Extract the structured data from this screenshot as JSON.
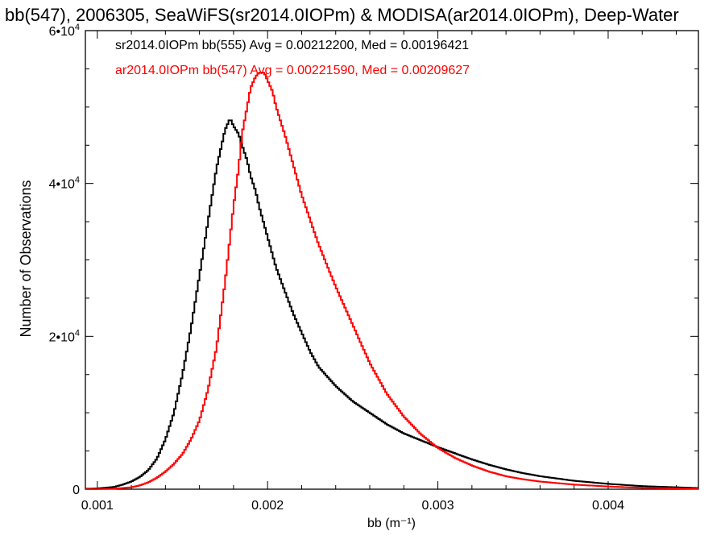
{
  "chart_data": {
    "type": "line",
    "title": "bb(547), 2006305, SeaWiFS(sr2014.0IOPm) & MODISA(ar2014.0IOPm), Deep-Water",
    "xlabel": "bb (m⁻¹)",
    "ylabel": "Number of Observations",
    "xlim": [
      0.00093,
      0.00453
    ],
    "ylim": [
      0,
      60000
    ],
    "x_ticks": [
      {
        "value": 0.001,
        "label": "0.001"
      },
      {
        "value": 0.002,
        "label": "0.002"
      },
      {
        "value": 0.003,
        "label": "0.003"
      },
      {
        "value": 0.004,
        "label": "0.004"
      }
    ],
    "y_ticks": [
      {
        "value": 0,
        "base": "0",
        "exp": ""
      },
      {
        "value": 20000,
        "base": "2•10",
        "exp": "4"
      },
      {
        "value": 40000,
        "base": "4•10",
        "exp": "4"
      },
      {
        "value": 60000,
        "base": "6•10",
        "exp": "4"
      }
    ],
    "step_style": "histogram",
    "series": [
      {
        "label": "sr2014.0IOPm bb(555) Avg = 0.00212200, Med = 0.00196421",
        "color": "#000000",
        "x": [
          0.00093,
          0.001,
          0.0011,
          0.00115,
          0.0012,
          0.00125,
          0.0013,
          0.00135,
          0.0014,
          0.00145,
          0.0015,
          0.00155,
          0.0016,
          0.00165,
          0.0017,
          0.00173,
          0.00175,
          0.00178,
          0.0018,
          0.00183,
          0.00185,
          0.00188,
          0.0019,
          0.00193,
          0.00195,
          0.002,
          0.00205,
          0.0021,
          0.00215,
          0.0022,
          0.00225,
          0.0023,
          0.0024,
          0.0025,
          0.0026,
          0.0027,
          0.0028,
          0.0029,
          0.003,
          0.0031,
          0.0032,
          0.0033,
          0.0034,
          0.0035,
          0.0036,
          0.0038,
          0.004,
          0.0042,
          0.00453
        ],
        "y": [
          50,
          100,
          300,
          600,
          1000,
          1600,
          2500,
          4000,
          6500,
          10000,
          15000,
          21000,
          28000,
          35000,
          42000,
          45000,
          47000,
          48500,
          47500,
          46500,
          45000,
          43000,
          41000,
          39000,
          37000,
          33000,
          29000,
          26000,
          23000,
          20500,
          18000,
          16000,
          13500,
          11500,
          10000,
          8500,
          7300,
          6400,
          5500,
          4700,
          3900,
          3200,
          2600,
          2100,
          1700,
          1100,
          700,
          400,
          150
        ]
      },
      {
        "label": "ar2014.0IOPm bb(547) Avg = 0.00221590, Med = 0.00209627",
        "color": "#ff0000",
        "x": [
          0.00093,
          0.001,
          0.0011,
          0.0012,
          0.00125,
          0.0013,
          0.00135,
          0.0014,
          0.00145,
          0.0015,
          0.00155,
          0.0016,
          0.00165,
          0.0017,
          0.00175,
          0.0018,
          0.00183,
          0.00185,
          0.00188,
          0.0019,
          0.00193,
          0.00195,
          0.00198,
          0.002,
          0.00203,
          0.00205,
          0.0021,
          0.00215,
          0.0022,
          0.0023,
          0.0024,
          0.0025,
          0.0026,
          0.0027,
          0.0028,
          0.0029,
          0.003,
          0.0031,
          0.0032,
          0.0033,
          0.0034,
          0.0035,
          0.0036,
          0.0038,
          0.004,
          0.0042,
          0.00453
        ],
        "y": [
          0,
          20,
          60,
          250,
          500,
          900,
          1500,
          2300,
          3300,
          4600,
          6500,
          9000,
          13000,
          18500,
          27000,
          37000,
          42000,
          46500,
          50000,
          52500,
          54000,
          54500,
          54500,
          53500,
          52000,
          50000,
          46500,
          42500,
          38500,
          32000,
          26500,
          21500,
          16500,
          12500,
          9500,
          7200,
          5400,
          4100,
          3100,
          2300,
          1700,
          1300,
          1000,
          600,
          350,
          180,
          60
        ]
      }
    ]
  }
}
